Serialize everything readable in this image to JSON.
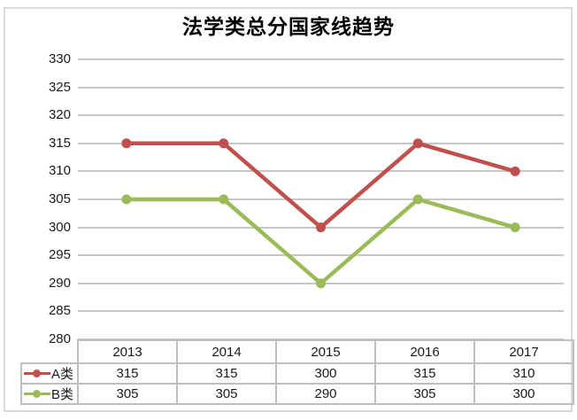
{
  "title": "法学类总分国家线趋势",
  "colors": {
    "series_a": "#c0504d",
    "series_b": "#9bbb59",
    "gridline": "#c6c6c6",
    "table_border": "#bfbfbf",
    "text": "#1a1a1a",
    "outer_border": "#d9d9d9"
  },
  "y_axis": {
    "tick_labels": [
      "330",
      "325",
      "320",
      "315",
      "310",
      "305",
      "300",
      "295",
      "290",
      "285",
      "280"
    ]
  },
  "chart_data": {
    "type": "line",
    "title": "法学类总分国家线趋势",
    "categories": [
      "2013",
      "2014",
      "2015",
      "2016",
      "2017"
    ],
    "series": [
      {
        "name": "A类",
        "color": "#c0504d",
        "values": [
          315,
          315,
          300,
          315,
          310
        ]
      },
      {
        "name": "B类",
        "color": "#9bbb59",
        "values": [
          305,
          305,
          290,
          305,
          300
        ]
      }
    ],
    "ylim": [
      280,
      330
    ],
    "ytick_step": 5,
    "grid": true,
    "legend_position": "data-table-left",
    "data_table": true,
    "xlabel": "",
    "ylabel": ""
  }
}
